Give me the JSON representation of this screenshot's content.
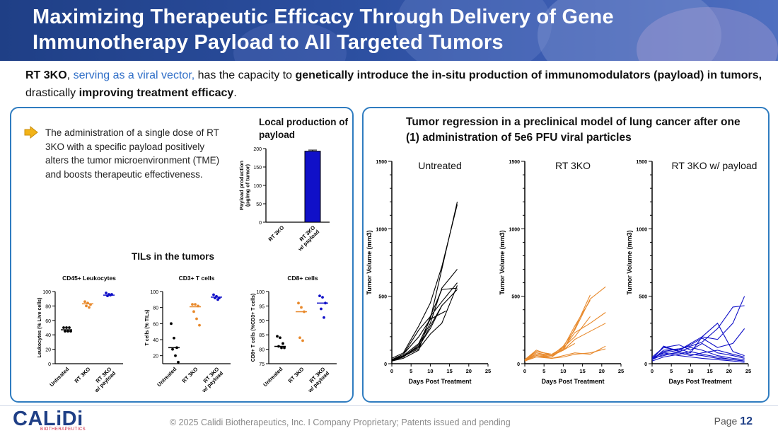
{
  "header": {
    "title_line1": "Maximizing Therapeutic Efficacy Through Delivery of Gene",
    "title_line2": "Immunotherapy Payload to All Targeted Tumors"
  },
  "intro": {
    "p1_bold": "RT 3KO",
    "p2_comma": ", ",
    "p3_blue": "serving as a viral vector,",
    "p4": " has the capacity to ",
    "p5_bold": "genetically introduce the in-situ production of immunomodulators (payload) in tumors,",
    "p6": " drastically ",
    "p7_bold": "improving treatment efficacy",
    "p8": "."
  },
  "left_panel": {
    "description": "The administration of a single dose of RT 3KO with a specific payload positively alters the tumor microenvironment (TME) and boosts therapeutic effectiveness.",
    "local_production_title": "Local production of payload",
    "tils_title": "TILs in the tumors"
  },
  "right_panel": {
    "heading": "Tumor regression in a preclinical model of lung cancer after one (1) administration of 5e6 PFU viral particles"
  },
  "colors": {
    "untreated": "#000000",
    "rt3ko": "#e8892b",
    "payload": "#1010c8",
    "accent": "#2f7cc0",
    "arrow": "#f2b318"
  },
  "footer": {
    "logo": "CALiDi",
    "logo_sub": "BIOTHERAPEUTICS",
    "copyright": "© 2025 Calidi Biotherapeutics, Inc. I  Company Proprietary; Patents issued and pending",
    "page_label": "Page",
    "page_number": "12"
  },
  "chart_data": [
    {
      "id": "payload",
      "type": "bar",
      "title": "Local production of payload",
      "ylabel": "Payload production\n(pg/mg of tumor)",
      "categories": [
        "RT 3KO",
        "RT 3KO\nw/ payload"
      ],
      "values": [
        0,
        193
      ],
      "error": [
        0,
        3
      ],
      "ylim": [
        0,
        200
      ],
      "yticks": [
        0,
        50,
        100,
        150,
        200
      ]
    },
    {
      "id": "cd45",
      "type": "scatter",
      "title": "CD45+ Leukocytes",
      "ylabel": "Leukocytes (% Live cells)",
      "categories": [
        "Untreated",
        "RT 3KO",
        "RT 3KO\nw/ payload"
      ],
      "ylim": [
        0,
        100
      ],
      "yticks": [
        0,
        20,
        40,
        60,
        80,
        100
      ],
      "groups": [
        [
          50,
          50,
          50,
          45,
          45,
          45
        ],
        [
          86,
          84,
          82,
          80,
          78
        ],
        [
          98,
          96,
          96,
          94,
          95
        ]
      ],
      "means": [
        47,
        83,
        95
      ]
    },
    {
      "id": "cd3",
      "type": "scatter",
      "title": "CD3+ T cells",
      "ylabel": "T cells (% TILs)",
      "categories": [
        "Untreated",
        "RT 3KO",
        "RT 3KO\nw/ payload"
      ],
      "ylim": [
        10,
        100
      ],
      "yticks": [
        20,
        40,
        60,
        80,
        100
      ],
      "groups": [
        [
          60,
          42,
          30,
          28,
          20,
          12
        ],
        [
          84,
          84,
          82,
          75,
          66,
          58
        ],
        [
          96,
          94,
          92,
          92,
          90
        ]
      ],
      "means": [
        30,
        81,
        93
      ]
    },
    {
      "id": "cd8",
      "type": "scatter",
      "title": "CD8+ cells",
      "ylabel": "CD8+ T cells (%CD3+ T cells)",
      "categories": [
        "Untreated",
        "RT 3KO",
        "RT 3KO\nw/ payload"
      ],
      "ylim": [
        75,
        100
      ],
      "yticks": [
        75,
        80,
        85,
        90,
        95,
        100
      ],
      "groups": [
        [
          84.5,
          84,
          82,
          81,
          80.5,
          80.5
        ],
        [
          96,
          94.5,
          93,
          84,
          83
        ],
        [
          98.5,
          98,
          96,
          94,
          91
        ]
      ],
      "means": [
        81,
        93,
        96
      ]
    },
    {
      "id": "untreated",
      "type": "line",
      "title": "Untreated",
      "xlabel": "Days Post Treatment",
      "ylabel": "Tumor Volume (mm3)",
      "xlim": [
        0,
        25
      ],
      "ylim": [
        0,
        1500
      ],
      "xticks": [
        0,
        5,
        10,
        15,
        20,
        25
      ],
      "yticks": [
        0,
        500,
        1000,
        1500
      ],
      "series": [
        {
          "x": [
            0,
            3,
            7,
            10,
            13,
            17
          ],
          "y": [
            30,
            60,
            150,
            330,
            700,
            1200
          ]
        },
        {
          "x": [
            0,
            3,
            7,
            10,
            13,
            17
          ],
          "y": [
            40,
            80,
            280,
            450,
            720,
            1180
          ]
        },
        {
          "x": [
            0,
            3,
            7,
            10,
            13,
            17
          ],
          "y": [
            20,
            50,
            140,
            300,
            560,
            700
          ]
        },
        {
          "x": [
            0,
            3,
            7,
            10,
            13,
            17
          ],
          "y": [
            30,
            70,
            250,
            350,
            550,
            560
          ]
        },
        {
          "x": [
            0,
            3,
            7,
            10,
            13,
            17
          ],
          "y": [
            25,
            60,
            120,
            280,
            430,
            550
          ]
        },
        {
          "x": [
            0,
            3,
            7,
            10,
            13,
            17
          ],
          "y": [
            20,
            40,
            100,
            350,
            460,
            600
          ]
        },
        {
          "x": [
            0,
            3,
            7,
            10,
            14
          ],
          "y": [
            30,
            70,
            200,
            330,
            390
          ]
        },
        {
          "x": [
            0,
            3,
            7,
            10,
            13
          ],
          "y": [
            20,
            50,
            130,
            260,
            430
          ]
        },
        {
          "x": [
            0,
            3,
            7,
            10,
            13,
            17
          ],
          "y": [
            25,
            55,
            110,
            220,
            300,
            580
          ]
        }
      ]
    },
    {
      "id": "rt3ko",
      "type": "line",
      "title": "RT 3KO",
      "xlabel": "Days Post Treatment",
      "ylabel": "Tumor Volume (mm3)",
      "xlim": [
        0,
        25
      ],
      "ylim": [
        0,
        1500
      ],
      "xticks": [
        0,
        5,
        10,
        15,
        20,
        25
      ],
      "yticks": [
        0,
        500,
        1000,
        1500
      ],
      "series": [
        {
          "x": [
            0,
            3,
            7,
            10,
            13,
            17
          ],
          "y": [
            30,
            80,
            60,
            100,
            260,
            510
          ]
        },
        {
          "x": [
            0,
            3,
            7,
            10,
            13,
            17
          ],
          "y": [
            30,
            90,
            70,
            120,
            280,
            470
          ]
        },
        {
          "x": [
            0,
            3,
            7,
            10,
            13,
            17,
            21
          ],
          "y": [
            30,
            100,
            60,
            130,
            250,
            480,
            570
          ]
        },
        {
          "x": [
            0,
            3,
            7,
            10,
            13,
            17,
            21
          ],
          "y": [
            20,
            60,
            50,
            110,
            230,
            300,
            380
          ]
        },
        {
          "x": [
            0,
            3,
            7,
            10,
            13,
            17,
            21
          ],
          "y": [
            25,
            70,
            60,
            100,
            180,
            240,
            300
          ]
        },
        {
          "x": [
            0,
            3,
            7,
            10,
            13,
            17
          ],
          "y": [
            30,
            70,
            50,
            120,
            200,
            350
          ]
        },
        {
          "x": [
            0,
            3,
            7,
            10,
            13,
            17,
            21
          ],
          "y": [
            20,
            50,
            40,
            60,
            80,
            70,
            130
          ]
        },
        {
          "x": [
            0,
            3,
            7,
            10,
            13,
            17,
            21
          ],
          "y": [
            25,
            60,
            40,
            50,
            70,
            80,
            110
          ]
        },
        {
          "x": [
            0,
            3,
            7,
            10,
            13
          ],
          "y": [
            30,
            90,
            70,
            100,
            150
          ]
        }
      ]
    },
    {
      "id": "payload_growth",
      "type": "line",
      "title": "RT 3KO w/ payload",
      "xlabel": "Days Post Treatment",
      "ylabel": "Tumor Volume (mm3)",
      "xlim": [
        0,
        25
      ],
      "ylim": [
        0,
        1500
      ],
      "xticks": [
        0,
        5,
        10,
        15,
        20,
        25
      ],
      "yticks": [
        0,
        500,
        1000,
        1500
      ],
      "series": [
        {
          "x": [
            0,
            3,
            7,
            10,
            13,
            17,
            21,
            24
          ],
          "y": [
            40,
            120,
            100,
            150,
            200,
            180,
            300,
            500
          ]
        },
        {
          "x": [
            0,
            3,
            7,
            10,
            13,
            17,
            21,
            24
          ],
          "y": [
            30,
            100,
            110,
            130,
            160,
            260,
            420,
            430
          ]
        },
        {
          "x": [
            0,
            3,
            7,
            10,
            13,
            17,
            21,
            24
          ],
          "y": [
            40,
            80,
            100,
            140,
            190,
            120,
            150,
            260
          ]
        },
        {
          "x": [
            0,
            3,
            7,
            10,
            13,
            17,
            21,
            24
          ],
          "y": [
            30,
            90,
            110,
            80,
            200,
            300,
            90,
            60
          ]
        },
        {
          "x": [
            0,
            3,
            7,
            10,
            13,
            17,
            21,
            24
          ],
          "y": [
            50,
            120,
            140,
            100,
            150,
            80,
            60,
            40
          ]
        },
        {
          "x": [
            0,
            3,
            7,
            10,
            13,
            17,
            21,
            24
          ],
          "y": [
            40,
            60,
            90,
            120,
            100,
            60,
            40,
            30
          ]
        },
        {
          "x": [
            0,
            3,
            7,
            10,
            13,
            17,
            21,
            24
          ],
          "y": [
            30,
            70,
            80,
            60,
            80,
            100,
            70,
            50
          ]
        },
        {
          "x": [
            0,
            3,
            7,
            10,
            13,
            17,
            21,
            24
          ],
          "y": [
            20,
            50,
            70,
            90,
            70,
            50,
            30,
            20
          ]
        },
        {
          "x": [
            0,
            3,
            7,
            10,
            13,
            17,
            21,
            24
          ],
          "y": [
            40,
            80,
            60,
            50,
            40,
            30,
            20,
            10
          ]
        },
        {
          "x": [
            0,
            3,
            7,
            10,
            13,
            17,
            21,
            24
          ],
          "y": [
            30,
            130,
            90,
            70,
            60,
            40,
            30,
            20
          ]
        }
      ]
    }
  ]
}
